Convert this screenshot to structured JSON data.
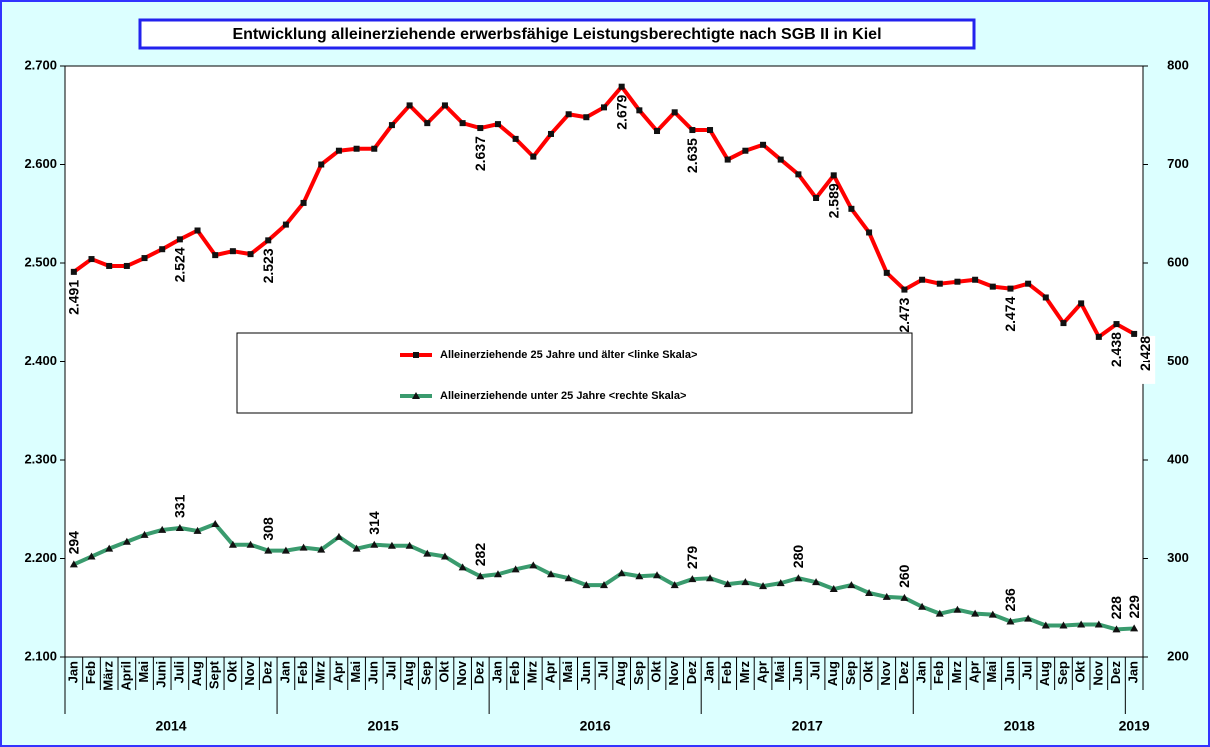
{
  "chart_data": {
    "type": "line",
    "title": "Entwicklung alleinerziehende erwerbsfähige Leistungsberechtigte nach SGB II in Kiel",
    "categories": [
      "Jan",
      "Feb",
      "März",
      "April",
      "Mai",
      "Juni",
      "Juli",
      "Aug",
      "Sept",
      "Okt",
      "Nov",
      "Dez",
      "Jan",
      "Feb",
      "Mrz",
      "Apr",
      "Mai",
      "Jun",
      "Jul",
      "Aug",
      "Sep",
      "Okt",
      "Nov",
      "Dez",
      "Jan",
      "Feb",
      "Mrz",
      "Apr",
      "Mai",
      "Jun",
      "Jul",
      "Aug",
      "Sep",
      "Okt",
      "Nov",
      "Dez",
      "Jan",
      "Feb",
      "Mrz",
      "Apr",
      "Mai",
      "Jun",
      "Jul",
      "Aug",
      "Sep",
      "Okt",
      "Nov",
      "Dez",
      "Jan",
      "Feb",
      "Mrz",
      "Apr",
      "Mai",
      "Jun",
      "Jul",
      "Aug",
      "Sep",
      "Okt",
      "Nov",
      "Dez",
      "Jan"
    ],
    "years": [
      "2014",
      "2015",
      "2016",
      "2017",
      "2018",
      "2019"
    ],
    "series": [
      {
        "name": "Alleinerziehende 25 Jahre und älter <linke Skala>",
        "color": "#ff0000",
        "axis": "y",
        "values": [
          2491,
          2504,
          2497,
          2497,
          2505,
          2514,
          2524,
          2533,
          2508,
          2512,
          2509,
          2523,
          2539,
          2561,
          2600,
          2614,
          2616,
          2616,
          2640,
          2660,
          2642,
          2660,
          2642,
          2637,
          2641,
          2626,
          2608,
          2631,
          2651,
          2648,
          2658,
          2679,
          2655,
          2634,
          2653,
          2635,
          2635,
          2605,
          2614,
          2620,
          2605,
          2590,
          2566,
          2589,
          2555,
          2531,
          2490,
          2473,
          2483,
          2479,
          2481,
          2483,
          2476,
          2474,
          2479,
          2465,
          2439,
          2459,
          2425,
          2438,
          2428
        ],
        "value_labels": [
          "2.491",
          null,
          null,
          null,
          null,
          null,
          "2.524",
          null,
          null,
          null,
          null,
          "2.523",
          null,
          null,
          null,
          null,
          null,
          null,
          null,
          null,
          null,
          null,
          null,
          "2.637",
          null,
          null,
          null,
          null,
          null,
          null,
          null,
          "2.679",
          null,
          null,
          null,
          "2.635",
          null,
          null,
          null,
          null,
          null,
          null,
          null,
          "2.589",
          null,
          null,
          null,
          "2.473",
          null,
          null,
          null,
          null,
          null,
          "2.474",
          null,
          null,
          null,
          null,
          null,
          "2.438",
          "2.428"
        ]
      },
      {
        "name": "Alleinerziehende unter 25 Jahre <rechte Skala>",
        "color": "#3a9b6e",
        "axis": "y2",
        "values": [
          294,
          302,
          310,
          317,
          324,
          329,
          331,
          328,
          335,
          314,
          314,
          308,
          308,
          311,
          309,
          322,
          310,
          314,
          313,
          313,
          305,
          302,
          291,
          282,
          284,
          289,
          293,
          284,
          280,
          273,
          273,
          285,
          282,
          283,
          273,
          279,
          280,
          274,
          276,
          272,
          275,
          280,
          276,
          269,
          273,
          265,
          261,
          260,
          251,
          244,
          248,
          244,
          243,
          236,
          239,
          232,
          232,
          233,
          233,
          228,
          229
        ],
        "value_labels": [
          "294",
          null,
          null,
          null,
          null,
          null,
          "331",
          null,
          null,
          null,
          null,
          "308",
          null,
          null,
          null,
          null,
          null,
          "314",
          null,
          null,
          null,
          null,
          null,
          "282",
          null,
          null,
          null,
          null,
          null,
          null,
          null,
          null,
          null,
          null,
          null,
          "279",
          null,
          null,
          null,
          null,
          null,
          "280",
          null,
          null,
          null,
          null,
          null,
          "260",
          null,
          null,
          null,
          null,
          null,
          "236",
          null,
          null,
          null,
          null,
          null,
          "228",
          "229"
        ]
      }
    ],
    "ylim": [
      2100,
      2700
    ],
    "yticks": [
      {
        "value": 2100,
        "label": "2.100"
      },
      {
        "value": 2200,
        "label": "2.200"
      },
      {
        "value": 2300,
        "label": "2.300"
      },
      {
        "value": 2400,
        "label": "2.400"
      },
      {
        "value": 2500,
        "label": "2.500"
      },
      {
        "value": 2600,
        "label": "2.600"
      },
      {
        "value": 2700,
        "label": "2.700"
      }
    ],
    "y2lim": [
      200,
      800
    ],
    "y2ticks": [
      200,
      300,
      400,
      500,
      600,
      700,
      800
    ]
  }
}
